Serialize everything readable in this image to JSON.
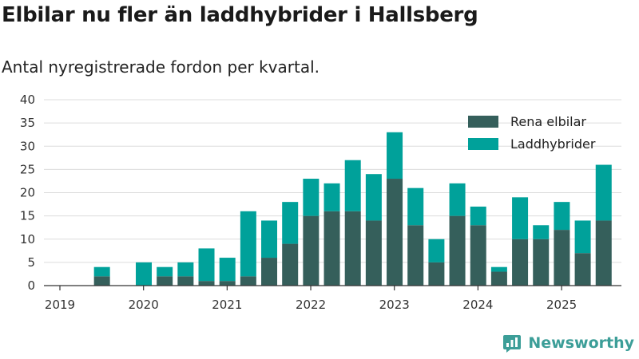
{
  "header": {
    "title": "Elbilar nu fler än laddhybrider i Hallsberg",
    "subtitle": "Antal nyregistrerade fordon per kvartal."
  },
  "brand": {
    "name": "Newsworthy",
    "icon": "newsworthy-logo-icon"
  },
  "chart_data": {
    "type": "bar",
    "stacked": true,
    "categories": [
      "2019 Q1",
      "2019 Q2",
      "2019 Q3",
      "2019 Q4",
      "2020 Q1",
      "2020 Q2",
      "2020 Q3",
      "2020 Q4",
      "2021 Q1",
      "2021 Q2",
      "2021 Q3",
      "2021 Q4",
      "2022 Q1",
      "2022 Q2",
      "2022 Q3",
      "2022 Q4",
      "2023 Q1",
      "2023 Q2",
      "2023 Q3",
      "2023 Q4",
      "2024 Q1",
      "2024 Q2",
      "2024 Q3",
      "2024 Q4",
      "2025 Q1",
      "2025 Q2"
    ],
    "series": [
      {
        "name": "Rena elbilar",
        "color": "#355f5b",
        "values": [
          0,
          2,
          0,
          0,
          2,
          2,
          1,
          1,
          2,
          6,
          9,
          15,
          16,
          16,
          14,
          23,
          13,
          5,
          15,
          13,
          3,
          10,
          10,
          12,
          7,
          14
        ]
      },
      {
        "name": "Laddhybrider",
        "color": "#00a19a",
        "values": [
          0,
          2,
          0,
          5,
          2,
          3,
          7,
          5,
          14,
          8,
          9,
          8,
          6,
          11,
          10,
          10,
          8,
          5,
          7,
          4,
          1,
          9,
          3,
          6,
          7,
          12
        ]
      }
    ],
    "x_tick_labels": [
      "2019",
      "2020",
      "2021",
      "2022",
      "2023",
      "2024",
      "2025"
    ],
    "y_ticks": [
      0,
      5,
      10,
      15,
      20,
      25,
      30,
      35,
      40
    ],
    "ylim": [
      0,
      40
    ],
    "grid": true,
    "legend_position": "top-right"
  }
}
